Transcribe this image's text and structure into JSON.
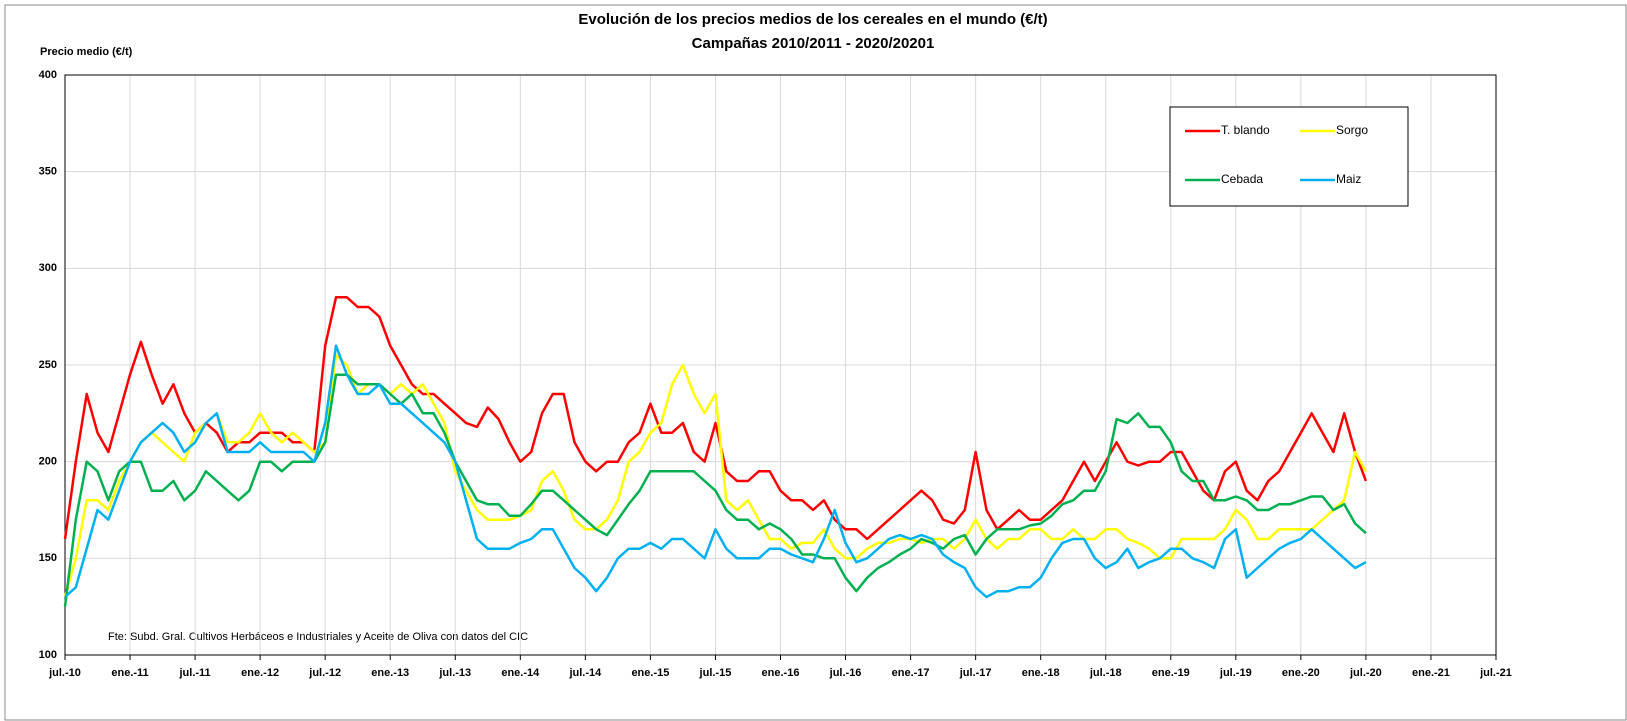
{
  "chart_data": {
    "type": "line",
    "title": "Evolución de los precios medios de los cereales en el mundo (€/t)",
    "subtitle": "Campañas 2010/2011 - 2020/20201",
    "y_label": "Precio medio (€/t)",
    "annotation": "Fte: Subd. Gral. Cultivos Herbáceos e Industriales y Aceite de Oliva con datos del CIC",
    "legend": "top-right",
    "grid": true,
    "ylim": [
      100,
      400
    ],
    "yticks": [
      100,
      150,
      200,
      250,
      300,
      350,
      400
    ],
    "xlim": [
      "2010-07",
      "2021-07"
    ],
    "xticks": [
      {
        "value": "2010-07",
        "label": "jul.-10"
      },
      {
        "value": "2011-01",
        "label": "ene.-11"
      },
      {
        "value": "2011-07",
        "label": "jul.-11"
      },
      {
        "value": "2012-01",
        "label": "ene.-12"
      },
      {
        "value": "2012-07",
        "label": "jul.-12"
      },
      {
        "value": "2013-01",
        "label": "ene.-13"
      },
      {
        "value": "2013-07",
        "label": "jul.-13"
      },
      {
        "value": "2014-01",
        "label": "ene.-14"
      },
      {
        "value": "2014-07",
        "label": "jul.-14"
      },
      {
        "value": "2015-01",
        "label": "ene.-15"
      },
      {
        "value": "2015-07",
        "label": "jul.-15"
      },
      {
        "value": "2016-01",
        "label": "ene.-16"
      },
      {
        "value": "2016-07",
        "label": "jul.-16"
      },
      {
        "value": "2017-01",
        "label": "ene.-17"
      },
      {
        "value": "2017-07",
        "label": "jul.-17"
      },
      {
        "value": "2018-01",
        "label": "ene.-18"
      },
      {
        "value": "2018-07",
        "label": "jul.-18"
      },
      {
        "value": "2019-01",
        "label": "ene.-19"
      },
      {
        "value": "2019-07",
        "label": "jul.-19"
      },
      {
        "value": "2020-01",
        "label": "ene.-20"
      },
      {
        "value": "2020-07",
        "label": "jul.-20"
      },
      {
        "value": "2021-01",
        "label": "ene.-21"
      },
      {
        "value": "2021-07",
        "label": "jul.-21"
      }
    ],
    "x": [
      "2010-07",
      "2010-08",
      "2010-09",
      "2010-10",
      "2010-11",
      "2010-12",
      "2011-01",
      "2011-02",
      "2011-03",
      "2011-04",
      "2011-05",
      "2011-06",
      "2011-07",
      "2011-08",
      "2011-09",
      "2011-10",
      "2011-11",
      "2011-12",
      "2012-01",
      "2012-02",
      "2012-03",
      "2012-04",
      "2012-05",
      "2012-06",
      "2012-07",
      "2012-08",
      "2012-09",
      "2012-10",
      "2012-11",
      "2012-12",
      "2013-01",
      "2013-02",
      "2013-03",
      "2013-04",
      "2013-05",
      "2013-06",
      "2013-07",
      "2013-08",
      "2013-09",
      "2013-10",
      "2013-11",
      "2013-12",
      "2014-01",
      "2014-02",
      "2014-03",
      "2014-04",
      "2014-05",
      "2014-06",
      "2014-07",
      "2014-08",
      "2014-09",
      "2014-10",
      "2014-11",
      "2014-12",
      "2015-01",
      "2015-02",
      "2015-03",
      "2015-04",
      "2015-05",
      "2015-06",
      "2015-07",
      "2015-08",
      "2015-09",
      "2015-10",
      "2015-11",
      "2015-12",
      "2016-01",
      "2016-02",
      "2016-03",
      "2016-04",
      "2016-05",
      "2016-06",
      "2016-07",
      "2016-08",
      "2016-09",
      "2016-10",
      "2016-11",
      "2016-12",
      "2017-01",
      "2017-02",
      "2017-03",
      "2017-04",
      "2017-05",
      "2017-06",
      "2017-07",
      "2017-08",
      "2017-09",
      "2017-10",
      "2017-11",
      "2017-12",
      "2018-01",
      "2018-02",
      "2018-03",
      "2018-04",
      "2018-05",
      "2018-06",
      "2018-07",
      "2018-08",
      "2018-09",
      "2018-10",
      "2018-11",
      "2018-12",
      "2019-01",
      "2019-02",
      "2019-03",
      "2019-04",
      "2019-05",
      "2019-06",
      "2019-07",
      "2019-08",
      "2019-09",
      "2019-10",
      "2019-11",
      "2019-12",
      "2020-01",
      "2020-02",
      "2020-03",
      "2020-04",
      "2020-05",
      "2020-06",
      "2020-07"
    ],
    "series": [
      {
        "name": "T. blando",
        "color": "#ff0000",
        "values": [
          160,
          200,
          235,
          215,
          205,
          225,
          245,
          262,
          245,
          230,
          240,
          225,
          215,
          220,
          215,
          205,
          210,
          210,
          215,
          215,
          215,
          210,
          210,
          205,
          260,
          285,
          285,
          280,
          280,
          275,
          260,
          250,
          240,
          235,
          235,
          230,
          225,
          220,
          218,
          228,
          222,
          210,
          200,
          205,
          225,
          235,
          235,
          210,
          200,
          195,
          200,
          200,
          210,
          215,
          230,
          215,
          215,
          220,
          205,
          200,
          220,
          195,
          190,
          190,
          195,
          195,
          185,
          180,
          180,
          175,
          180,
          170,
          165,
          165,
          160,
          165,
          170,
          175,
          180,
          185,
          180,
          170,
          168,
          175,
          205,
          175,
          165,
          170,
          175,
          170,
          170,
          175,
          180,
          190,
          200,
          190,
          200,
          210,
          200,
          198,
          200,
          200,
          205,
          205,
          195,
          185,
          180,
          195,
          200,
          185,
          180,
          190,
          195,
          205,
          215,
          225,
          215,
          205,
          225,
          205,
          190
        ]
      },
      {
        "name": "Sorgo",
        "color": "#ffff00",
        "values": [
          130,
          150,
          180,
          180,
          175,
          190,
          200,
          210,
          215,
          210,
          205,
          200,
          215,
          220,
          225,
          210,
          210,
          215,
          225,
          215,
          210,
          215,
          210,
          205,
          210,
          255,
          250,
          235,
          240,
          240,
          235,
          240,
          235,
          240,
          230,
          220,
          195,
          185,
          175,
          170,
          170,
          170,
          172,
          175,
          190,
          195,
          185,
          170,
          165,
          165,
          170,
          180,
          200,
          205,
          215,
          220,
          240,
          250,
          235,
          225,
          235,
          180,
          175,
          180,
          170,
          160,
          160,
          155,
          158,
          158,
          165,
          155,
          150,
          150,
          155,
          158,
          158,
          160,
          160,
          158,
          160,
          160,
          155,
          160,
          170,
          160,
          155,
          160,
          160,
          165,
          165,
          160,
          160,
          165,
          160,
          160,
          165,
          165,
          160,
          158,
          155,
          150,
          150,
          160,
          160,
          160,
          160,
          165,
          175,
          170,
          160,
          160,
          165,
          165,
          165,
          165,
          170,
          175,
          180,
          205,
          195
        ]
      },
      {
        "name": "Cebada",
        "color": "#00b050",
        "values": [
          125,
          170,
          200,
          195,
          180,
          195,
          200,
          200,
          185,
          185,
          190,
          180,
          185,
          195,
          190,
          185,
          180,
          185,
          200,
          200,
          195,
          200,
          200,
          200,
          210,
          245,
          245,
          240,
          240,
          240,
          235,
          230,
          235,
          225,
          225,
          215,
          200,
          190,
          180,
          178,
          178,
          172,
          172,
          178,
          185,
          185,
          180,
          175,
          170,
          165,
          162,
          170,
          178,
          185,
          195,
          195,
          195,
          195,
          195,
          190,
          185,
          175,
          170,
          170,
          165,
          168,
          165,
          160,
          152,
          152,
          150,
          150,
          140,
          133,
          140,
          145,
          148,
          152,
          155,
          160,
          158,
          155,
          160,
          162,
          152,
          160,
          165,
          165,
          165,
          167,
          168,
          172,
          178,
          180,
          185,
          185,
          195,
          222,
          220,
          225,
          218,
          218,
          210,
          195,
          190,
          190,
          180,
          180,
          182,
          180,
          175,
          175,
          178,
          178,
          180,
          182,
          182,
          175,
          178,
          168,
          163
        ]
      },
      {
        "name": "Maiz",
        "color": "#00b0f0",
        "values": [
          130,
          135,
          155,
          175,
          170,
          185,
          200,
          210,
          215,
          220,
          215,
          205,
          210,
          220,
          225,
          205,
          205,
          205,
          210,
          205,
          205,
          205,
          205,
          200,
          220,
          260,
          245,
          235,
          235,
          240,
          230,
          230,
          225,
          220,
          215,
          210,
          200,
          180,
          160,
          155,
          155,
          155,
          158,
          160,
          165,
          165,
          155,
          145,
          140,
          133,
          140,
          150,
          155,
          155,
          158,
          155,
          160,
          160,
          155,
          150,
          165,
          155,
          150,
          150,
          150,
          155,
          155,
          152,
          150,
          148,
          160,
          175,
          158,
          148,
          150,
          155,
          160,
          162,
          160,
          162,
          160,
          152,
          148,
          145,
          135,
          130,
          133,
          133,
          135,
          135,
          140,
          150,
          158,
          160,
          160,
          150,
          145,
          148,
          155,
          145,
          148,
          150,
          155,
          155,
          150,
          148,
          145,
          160,
          165,
          140,
          145,
          150,
          155,
          158,
          160,
          165,
          160,
          155,
          150,
          145,
          148
        ]
      }
    ]
  }
}
